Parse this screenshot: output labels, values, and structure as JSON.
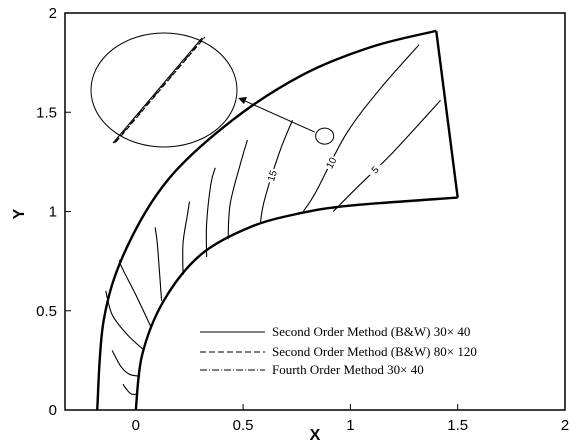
{
  "chart_data": {
    "type": "line",
    "title": "",
    "xlabel": "X",
    "ylabel": "Y",
    "xlim": [
      -0.33,
      2.0
    ],
    "ylim": [
      0,
      2.0
    ],
    "x_ticks": [
      0,
      0.5,
      1,
      1.5,
      2
    ],
    "x_tick_labels": [
      "0",
      "0.5",
      "1",
      "1.5",
      "2"
    ],
    "y_ticks": [
      0,
      0.5,
      1,
      1.5,
      2
    ],
    "y_tick_labels": [
      "0",
      "0.5",
      "1",
      "1.5",
      "2"
    ],
    "grid": false,
    "legend_position": "lower-right",
    "legend": [
      {
        "label": "Second Order Method (B&W)  30× 40",
        "style": "solid"
      },
      {
        "label": "Second Order Method (B&W)  80× 120",
        "style": "dashed"
      },
      {
        "label": "Fourth Order Method  30× 40",
        "style": "dashdot"
      }
    ],
    "boundaries": {
      "shock": [
        [
          -0.18,
          0.0
        ],
        [
          -0.15,
          0.45
        ],
        [
          -0.05,
          0.8
        ],
        [
          0.15,
          1.16
        ],
        [
          0.45,
          1.46
        ],
        [
          0.78,
          1.69
        ],
        [
          1.1,
          1.83
        ],
        [
          1.4,
          1.91
        ]
      ],
      "body": [
        [
          0.0,
          0.0
        ],
        [
          0.03,
          0.28
        ],
        [
          0.13,
          0.55
        ],
        [
          0.3,
          0.78
        ],
        [
          0.53,
          0.92
        ],
        [
          0.76,
          0.99
        ],
        [
          1.0,
          1.03
        ],
        [
          1.5,
          1.07
        ]
      ],
      "outflow": [
        [
          1.4,
          1.91
        ],
        [
          1.5,
          1.07
        ]
      ]
    },
    "contours": [
      {
        "label": "5",
        "points": [
          [
            0.92,
            1.0
          ],
          [
            1.03,
            1.12
          ],
          [
            1.2,
            1.3
          ],
          [
            1.42,
            1.56
          ]
        ]
      },
      {
        "label": "10",
        "points": [
          [
            0.78,
            1.0
          ],
          [
            0.84,
            1.1
          ],
          [
            0.98,
            1.39
          ],
          [
            1.14,
            1.62
          ],
          [
            1.32,
            1.84
          ]
        ]
      },
      {
        "label": "15",
        "points": [
          [
            0.58,
            0.94
          ],
          [
            0.6,
            1.06
          ],
          [
            0.67,
            1.3
          ],
          [
            0.73,
            1.46
          ]
        ]
      },
      {
        "label": "",
        "points": [
          [
            0.43,
            0.86
          ],
          [
            0.44,
            1.04
          ],
          [
            0.49,
            1.25
          ],
          [
            0.52,
            1.36
          ]
        ]
      },
      {
        "label": "",
        "points": [
          [
            0.33,
            0.77
          ],
          [
            0.33,
            0.94
          ],
          [
            0.35,
            1.14
          ],
          [
            0.37,
            1.22
          ]
        ]
      },
      {
        "label": "",
        "points": [
          [
            0.22,
            0.68
          ],
          [
            0.22,
            0.84
          ],
          [
            0.24,
            0.98
          ],
          [
            0.25,
            1.05
          ]
        ]
      },
      {
        "label": "",
        "points": [
          [
            0.12,
            0.55
          ],
          [
            0.11,
            0.7
          ],
          [
            0.1,
            0.84
          ],
          [
            0.09,
            0.92
          ]
        ]
      },
      {
        "label": "",
        "points": [
          [
            0.07,
            0.42
          ],
          [
            0.0,
            0.58
          ],
          [
            -0.07,
            0.73
          ],
          [
            -0.07,
            0.76
          ]
        ]
      },
      {
        "label": "",
        "points": [
          [
            0.04,
            0.3
          ],
          [
            -0.04,
            0.38
          ],
          [
            -0.11,
            0.48
          ],
          [
            -0.14,
            0.6
          ]
        ]
      },
      {
        "label": "",
        "points": [
          [
            0.02,
            0.17
          ],
          [
            -0.03,
            0.18
          ],
          [
            -0.07,
            0.22
          ],
          [
            -0.11,
            0.3
          ]
        ]
      },
      {
        "label": "",
        "points": [
          [
            0.01,
            0.08
          ],
          [
            -0.02,
            0.08
          ],
          [
            -0.04,
            0.1
          ],
          [
            -0.06,
            0.13
          ]
        ]
      }
    ],
    "zoom_point": [
      0.88,
      1.38
    ]
  }
}
